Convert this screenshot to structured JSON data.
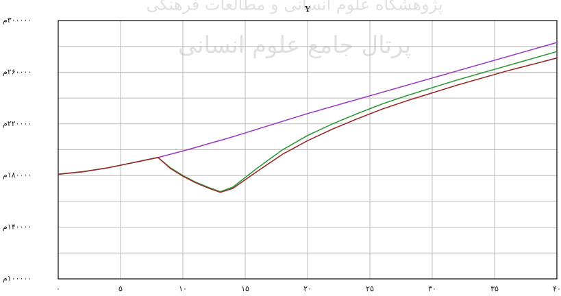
{
  "chart_data": {
    "type": "line",
    "title": "Y",
    "watermark": [
      "پژوهشگاه علوم انسانی و مطالعات فرهنگی",
      "پرتال جامع علوم انسانی"
    ],
    "x": [
      0,
      2,
      4,
      6,
      8,
      9,
      10,
      11,
      12,
      13,
      14,
      16,
      18,
      20,
      22,
      24,
      26,
      28,
      30,
      32,
      34,
      36,
      38,
      40
    ],
    "series": [
      {
        "name": "purple",
        "color": "#9b3fc0",
        "values": [
          181000,
          183000,
          186000,
          190000,
          194000,
          196500,
          199000,
          201700,
          204500,
          207200,
          210000,
          216000,
          222000,
          228000,
          233500,
          239000,
          244500,
          250000,
          255500,
          261000,
          266500,
          272000,
          277500,
          283000
        ]
      },
      {
        "name": "green",
        "color": "#2f9a3a",
        "values": [
          181000,
          183000,
          186000,
          190000,
          194000,
          186000,
          180000,
          175000,
          171000,
          167500,
          171000,
          186000,
          200000,
          211000,
          220000,
          228000,
          235500,
          242000,
          248000,
          254000,
          259500,
          265000,
          270500,
          276000
        ]
      },
      {
        "name": "red",
        "color": "#9a2a2a",
        "values": [
          181000,
          183000,
          186000,
          190000,
          194000,
          185500,
          179500,
          174500,
          170500,
          167000,
          170000,
          183500,
          196500,
          207000,
          216000,
          224000,
          231500,
          238000,
          244000,
          250000,
          255500,
          261000,
          266000,
          271000
        ]
      }
    ],
    "xlim": [
      0,
      40
    ],
    "xticks": [
      {
        "value": 0,
        "label": "۰"
      },
      {
        "value": 5,
        "label": "۵"
      },
      {
        "value": 10,
        "label": "۱۰"
      },
      {
        "value": 15,
        "label": "۱۵"
      },
      {
        "value": 20,
        "label": "۲۰"
      },
      {
        "value": 25,
        "label": "۲۵"
      },
      {
        "value": 30,
        "label": "۳۰"
      },
      {
        "value": 35,
        "label": "۳۵"
      },
      {
        "value": 40,
        "label": "۴۰"
      }
    ],
    "ylim": [
      100000,
      300000
    ],
    "yticks": [
      {
        "value": 100000,
        "label": "م۱۰۰۰۰۰"
      },
      {
        "value": 140000,
        "label": "م۱۴۰۰۰۰"
      },
      {
        "value": 180000,
        "label": "م۱۸۰۰۰۰"
      },
      {
        "value": 220000,
        "label": "م۲۲۰۰۰۰"
      },
      {
        "value": 260000,
        "label": "م۲۶۰۰۰۰"
      },
      {
        "value": 300000,
        "label": "م۳۰۰۰۰۰"
      }
    ],
    "y_minor_ticks": [
      120000,
      160000,
      200000,
      240000,
      280000
    ],
    "grid": true
  }
}
